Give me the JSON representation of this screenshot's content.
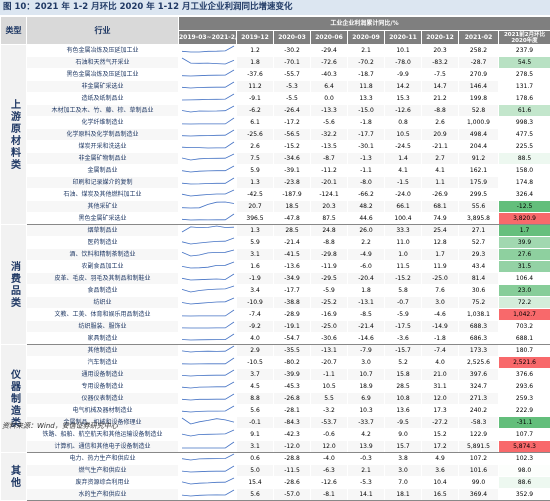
{
  "title": "图 10：2021 年 1-2 月环比 2020 年 1-12 月工业企业利润同比增速变化",
  "table": {
    "header": {
      "type": "类型",
      "industry": "行业",
      "span": "工业企业利润累计同比/%",
      "trend": "2019-03~2021-2月份",
      "periods": [
        "2019-12",
        "2020-03",
        "2020-06",
        "2020-09",
        "2020-11",
        "2020-12",
        "2021-02"
      ],
      "change": "2021前2月环比2020年度"
    },
    "groups": [
      {
        "name": "上游原材料类",
        "rows": [
          [
            "有色金属冶炼及压延加工业",
            "1.2",
            "-30.2",
            "-29.4",
            "2.1",
            "10.1",
            "20.3",
            "258.2",
            "237.9"
          ],
          [
            "石油和天然气开采业",
            "1.8",
            "-70.1",
            "-72.6",
            "-70.2",
            "-78.0",
            "-83.2",
            "-28.7",
            "54.5"
          ],
          [
            "黑色金属冶炼及压延加工业",
            "-37.6",
            "-55.7",
            "-40.3",
            "-18.7",
            "-9.9",
            "-7.5",
            "270.9",
            "278.5"
          ],
          [
            "非金属矿采选业",
            "11.2",
            "-5.3",
            "6.4",
            "11.8",
            "14.2",
            "14.7",
            "146.4",
            "131.7"
          ],
          [
            "造纸及纸制品业",
            "-9.1",
            "-5.5",
            "0.0",
            "13.3",
            "15.3",
            "21.2",
            "199.8",
            "178.6"
          ],
          [
            "木材加工及木、竹、藤、棕、草制品业",
            "-6.2",
            "-26.4",
            "-13.3",
            "-15.0",
            "-12.6",
            "-8.8",
            "52.8",
            "61.6"
          ],
          [
            "化学纤维制造业",
            "6.1",
            "-17.2",
            "-5.6",
            "-1.8",
            "0.8",
            "2.6",
            "1,000.9",
            "998.3"
          ],
          [
            "化学原料及化学制品制造业",
            "-25.6",
            "-56.5",
            "-32.2",
            "-17.7",
            "10.5",
            "20.9",
            "498.4",
            "477.5"
          ],
          [
            "煤炭开采和洗选业",
            "2.6",
            "-15.2",
            "-13.5",
            "-30.1",
            "-24.5",
            "-21.1",
            "204.4",
            "225.5"
          ],
          [
            "非金属矿物制品业",
            "7.5",
            "-34.6",
            "-8.7",
            "-1.3",
            "1.4",
            "2.7",
            "91.2",
            "88.5"
          ],
          [
            "金属制品业",
            "5.9",
            "-39.1",
            "-11.2",
            "-1.1",
            "4.1",
            "4.1",
            "162.1",
            "158.0"
          ],
          [
            "印刷和记录媒介的复制",
            "1.3",
            "-23.8",
            "-20.1",
            "-8.0",
            "-1.5",
            "1.1",
            "175.9",
            "174.8"
          ],
          [
            "石油、煤炭及其他燃料加工业",
            "-42.5",
            "-187.9",
            "-124.1",
            "-66.2",
            "-24.0",
            "-26.9",
            "299.5",
            "326.4"
          ],
          [
            "其他采矿业",
            "20.7",
            "18.5",
            "20.3",
            "48.2",
            "66.1",
            "68.1",
            "55.6",
            "-12.5"
          ],
          [
            "黑色金属矿采选业",
            "396.5",
            "-47.8",
            "87.5",
            "44.6",
            "100.4",
            "74.9",
            "3,895.8",
            "3,820.9"
          ]
        ]
      },
      {
        "name": "消费品类",
        "rows": [
          [
            "烟草制品业",
            "1.3",
            "28.5",
            "24.8",
            "26.0",
            "33.3",
            "25.4",
            "27.1",
            "1.7"
          ],
          [
            "医药制造业",
            "5.9",
            "-21.4",
            "-8.8",
            "2.2",
            "11.0",
            "12.8",
            "52.7",
            "39.9"
          ],
          [
            "酒、饮料和精制茶制造业",
            "3.1",
            "-41.5",
            "-29.8",
            "-4.9",
            "1.0",
            "1.7",
            "29.3",
            "27.6"
          ],
          [
            "农副食品加工业",
            "1.6",
            "-13.6",
            "-11.9",
            "-6.0",
            "11.5",
            "11.9",
            "43.4",
            "31.5"
          ],
          [
            "皮革、毛皮、羽毛及其制品和制鞋业",
            "-1.9",
            "-34.9",
            "-29.5",
            "-20.4",
            "-15.2",
            "-25.0",
            "81.4",
            "106.4"
          ],
          [
            "食品制造业",
            "3.4",
            "-17.7",
            "-5.9",
            "1.8",
            "5.8",
            "7.6",
            "30.6",
            "23.0"
          ],
          [
            "纺织业",
            "-10.9",
            "-38.8",
            "-25.2",
            "-13.1",
            "-0.7",
            "3.0",
            "75.2",
            "72.2"
          ],
          [
            "文教、工美、体育和娱乐用品制造业",
            "-7.4",
            "-28.9",
            "-16.9",
            "-8.5",
            "-5.9",
            "-4.6",
            "1,038.1",
            "1,042.7"
          ],
          [
            "纺织服装、服饰业",
            "-9.2",
            "-19.1",
            "-25.0",
            "-21.4",
            "-17.5",
            "-14.9",
            "688.3",
            "703.2"
          ],
          [
            "家具制造业",
            "4.0",
            "-54.7",
            "-30.6",
            "-14.6",
            "-3.6",
            "-1.8",
            "686.3",
            "688.1"
          ]
        ]
      },
      {
        "name": "仪器制造类",
        "rows": [
          [
            "其他制造业",
            "2.9",
            "-35.5",
            "-13.1",
            "-7.9",
            "-15.7",
            "-7.4",
            "173.3",
            "180.7"
          ],
          [
            "汽车制造业",
            "-10.5",
            "-80.2",
            "-20.7",
            "3.0",
            "5.2",
            "4.0",
            "2,525.6",
            "2,521.6"
          ],
          [
            "通用设备制造业",
            "3.7",
            "-39.9",
            "-1.1",
            "10.7",
            "15.8",
            "21.0",
            "397.6",
            "376.6"
          ],
          [
            "专用设备制造业",
            "4.5",
            "-45.3",
            "10.5",
            "18.9",
            "28.5",
            "31.1",
            "324.7",
            "293.6"
          ],
          [
            "仪器仪表制造业",
            "8.8",
            "-26.8",
            "5.5",
            "6.9",
            "10.8",
            "12.0",
            "271.3",
            "259.3"
          ],
          [
            "电气机械及器材制造业",
            "5.6",
            "-28.1",
            "-3.2",
            "10.3",
            "13.6",
            "17.3",
            "240.2",
            "222.9"
          ],
          [
            "金属制品、机械和设备修理业",
            "-0.1",
            "-84.3",
            "-53.7",
            "-33.7",
            "-9.5",
            "-27.2",
            "-58.3",
            "-31.1"
          ],
          [
            "铁路、船舶、航空航天和其他运输设备制造业",
            "9.1",
            "-42.3",
            "-0.6",
            "4.2",
            "9.0",
            "15.2",
            "122.9",
            "107.7"
          ],
          [
            "计算机、通信和其他电子设备制造业",
            "3.1",
            "-12.0",
            "12.0",
            "13.9",
            "15.7",
            "17.2",
            "5,891.5",
            "5,874.3"
          ]
        ]
      },
      {
        "name": "其他",
        "rows": [
          [
            "电力、热力生产和供应业",
            "0.6",
            "-28.8",
            "-4.0",
            "-0.3",
            "3.8",
            "4.9",
            "107.2",
            "102.3"
          ],
          [
            "燃气生产和供应业",
            "5.0",
            "-11.5",
            "-6.3",
            "2.1",
            "3.0",
            "3.6",
            "101.6",
            "98.0"
          ],
          [
            "废弃资源综合利用业",
            "15.4",
            "-28.6",
            "-12.6",
            "-5.3",
            "7.0",
            "10.4",
            "99.0",
            "88.6"
          ],
          [
            "水的生产和供应业",
            "5.6",
            "-57.0",
            "-8.1",
            "14.1",
            "18.1",
            "16.5",
            "369.4",
            "352.9"
          ]
        ]
      }
    ]
  },
  "source": "资料来源：Wind，安信证券研究中心"
}
